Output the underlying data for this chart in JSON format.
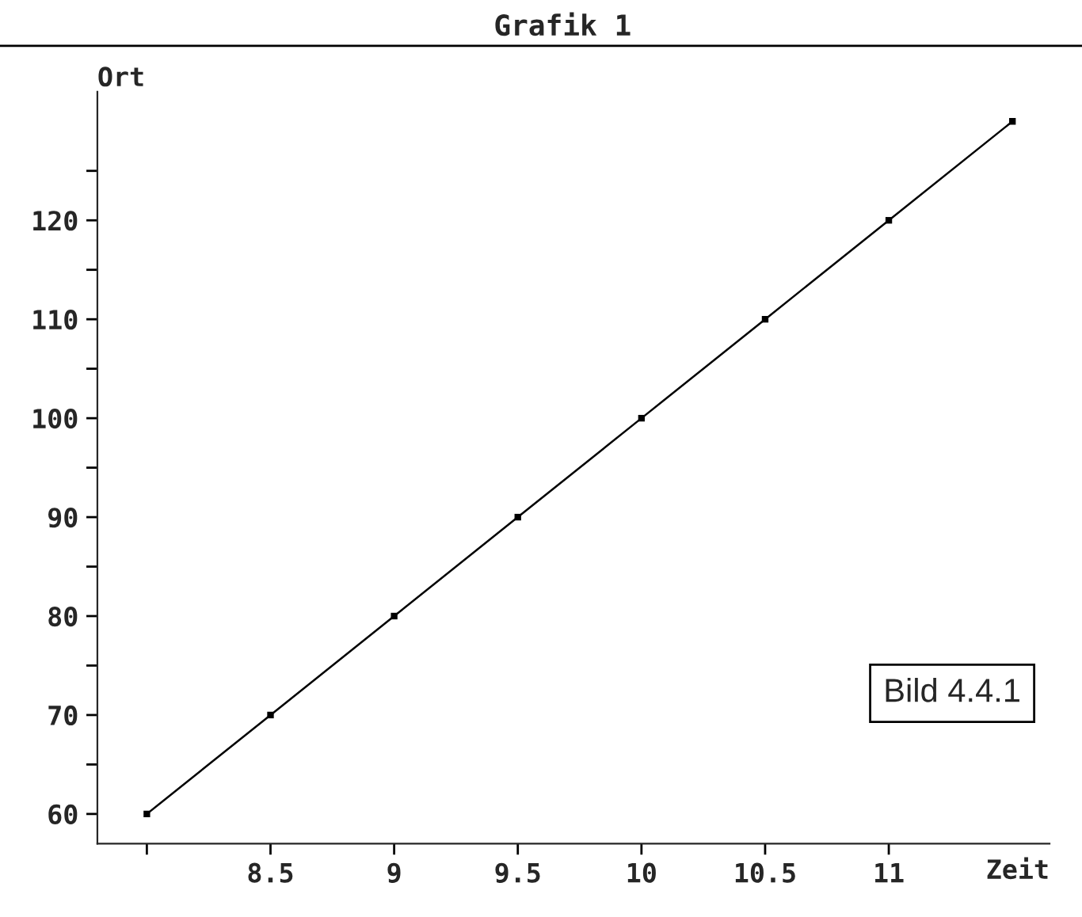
{
  "chart_data": {
    "type": "line",
    "title": "Grafik 1",
    "xlabel": "Zeit",
    "ylabel": "Ort",
    "x": [
      8,
      8.5,
      9,
      9.5,
      10,
      10.5,
      11,
      11.5
    ],
    "series": [
      {
        "color": "#000000",
        "values": [
          60,
          70,
          80,
          90,
          100,
          110,
          120,
          130
        ]
      }
    ],
    "marker": "square",
    "line_style": "solid",
    "grid": false,
    "xlim": [
      7.8,
      11.65
    ],
    "ylim": [
      57,
      133
    ],
    "xticks": [
      {
        "value": 8,
        "label": null
      },
      8.5,
      9,
      9.5,
      10,
      10.5,
      11
    ],
    "yticks": [
      60,
      {
        "value": 65,
        "label": null
      },
      70,
      {
        "value": 75,
        "label": null
      },
      80,
      {
        "value": 85,
        "label": null
      },
      90,
      {
        "value": 95,
        "label": null
      },
      100,
      {
        "value": 105,
        "label": null
      },
      110,
      {
        "value": 115,
        "label": null
      },
      120,
      {
        "value": 125,
        "label": null
      }
    ],
    "annotations": [
      "Bild 4.4.1"
    ]
  }
}
